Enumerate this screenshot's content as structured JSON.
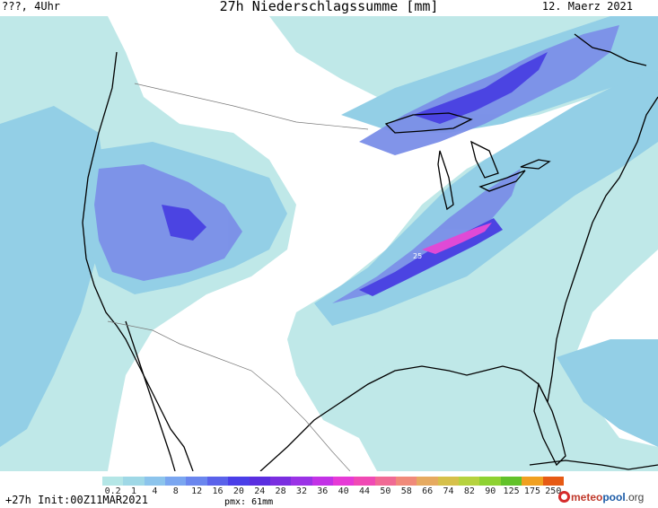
{
  "header": {
    "left_text": "???, 4Uhr",
    "title": "27h Niederschlagssumme [mm]",
    "date": "12. Maerz 2021"
  },
  "footer": {
    "forecast_hour": "+27h",
    "init_label": "Init:00Z11MAR2021",
    "pmx_label": "pmx: 61mm",
    "brand_main": "meteo",
    "brand_pool": "pool",
    "brand_tld": ".org"
  },
  "legend": {
    "ticks": [
      "0.2",
      "1",
      "4",
      "8",
      "12",
      "16",
      "20",
      "24",
      "28",
      "32",
      "36",
      "40",
      "44",
      "50",
      "58",
      "66",
      "74",
      "82",
      "90",
      "125",
      "175",
      "250"
    ],
    "colors": [
      "#b4e6e6",
      "#9fd8e6",
      "#8cc4ec",
      "#7aa6f0",
      "#6a86ee",
      "#5a62ea",
      "#4a3ee8",
      "#5a2ee0",
      "#7a2ee0",
      "#9a32e6",
      "#c232e6",
      "#e63ad6",
      "#f04ab4",
      "#f06a94",
      "#f08a7a",
      "#e6aa60",
      "#d6c04a",
      "#b6d23e",
      "#8ed232",
      "#62c22a",
      "#f0a020",
      "#e65a14"
    ]
  },
  "map": {
    "max_label": "25",
    "colors": {
      "ocean_land_bg": "#ffffff",
      "light": "#bfe8e8",
      "mid": "#93cfe6",
      "blue": "#7b8fe8",
      "deep": "#4b44e2",
      "max": "#e04ad6"
    }
  }
}
